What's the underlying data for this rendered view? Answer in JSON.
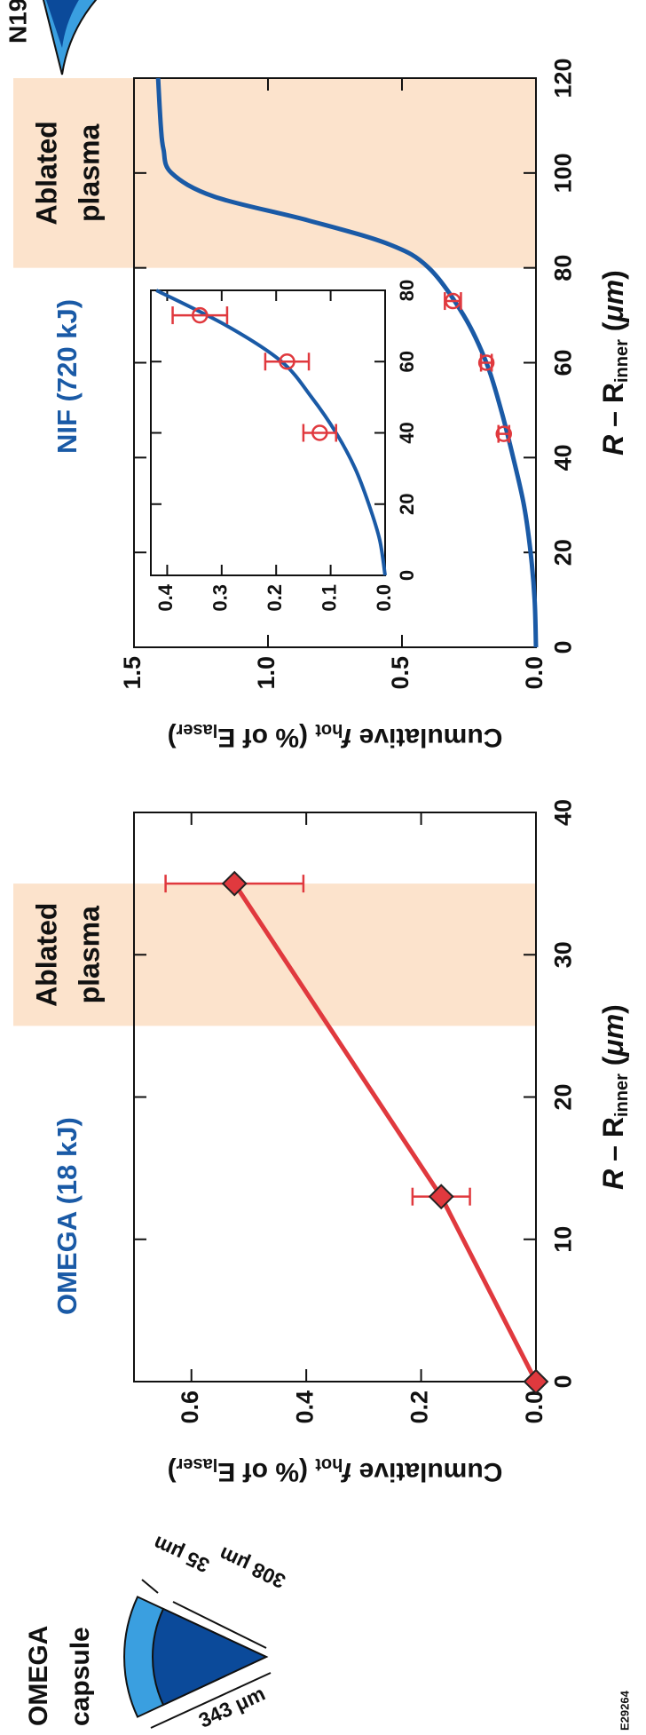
{
  "chart_data": [
    {
      "type": "line",
      "title": "OMEGA (18 kJ)",
      "title_color": "#1a5aa6",
      "xlabel": [
        "R",
        " – R",
        "inner",
        " (",
        "μm",
        ")"
      ],
      "ylabel": [
        "Cumulative ",
        "f",
        "hot",
        " (% of E",
        "laser",
        ")"
      ],
      "xlim": [
        0,
        40
      ],
      "xticks": [
        0,
        10,
        20,
        30,
        40
      ],
      "ylim": [
        0,
        0.7
      ],
      "yticks": [
        {
          "value": 0,
          "label": "0.0"
        },
        0.2,
        0.4,
        0.6
      ],
      "shade_range": [
        25,
        35
      ],
      "shade_color": "#fce3cc",
      "shade_label": [
        "Ablated",
        "plasma"
      ],
      "line": {
        "x": [
          0,
          13,
          35
        ],
        "values": [
          0,
          0.165,
          0.525
        ],
        "color": "#e0393e"
      },
      "points": {
        "x": [
          0,
          13,
          35
        ],
        "values": [
          0,
          0.165,
          0.525
        ],
        "errors": [
          null,
          0.05,
          0.12
        ],
        "color": "#e0393e",
        "marker": "diamond"
      }
    },
    {
      "type": "line",
      "title": "NIF (720 kJ)",
      "title_color": "#1a5aa6",
      "xlabel": [
        "R",
        " – R",
        "inner",
        " (",
        "μm",
        ")"
      ],
      "ylabel": [
        "Cumulative ",
        "f",
        "hot",
        " (% of E",
        "laser",
        ")"
      ],
      "xlim": [
        0,
        120
      ],
      "xticks": [
        0,
        20,
        40,
        60,
        80,
        100,
        120
      ],
      "ylim": [
        0,
        1.5
      ],
      "yticks": [
        {
          "value": 0,
          "label": "0.0"
        },
        0.5,
        {
          "value": 1,
          "label": "1.0"
        },
        1.5
      ],
      "shade_range": [
        80,
        120
      ],
      "shade_color": "#fce3cc",
      "shade_label": [
        "Ablated",
        "plasma"
      ],
      "line": {
        "x": [
          0,
          10,
          20,
          30,
          40,
          50,
          60,
          70,
          80,
          85,
          90,
          95,
          100,
          105,
          110,
          120
        ],
        "values": [
          0,
          0.005,
          0.02,
          0.045,
          0.085,
          0.13,
          0.185,
          0.27,
          0.4,
          0.55,
          0.85,
          1.2,
          1.36,
          1.39,
          1.4,
          1.41
        ],
        "color": "#1a5aa6"
      },
      "points": {
        "x": [
          45,
          60,
          73
        ],
        "values": [
          0.12,
          0.185,
          0.31
        ],
        "errors": [
          0.02,
          0.02,
          0.03
        ],
        "color": "#e0393e",
        "marker": "circle"
      }
    },
    {
      "type": "line",
      "xlim": [
        0,
        80
      ],
      "xticks": [
        0,
        20,
        40,
        60,
        80
      ],
      "ylim": [
        0,
        0.43
      ],
      "yticks": [
        {
          "value": 0,
          "label": "0.0"
        },
        0.1,
        0.2,
        0.3,
        0.4
      ],
      "line": {
        "x": [
          0,
          10,
          20,
          30,
          40,
          50,
          60,
          70,
          80
        ],
        "values": [
          0,
          0.01,
          0.03,
          0.055,
          0.09,
          0.135,
          0.19,
          0.29,
          0.42
        ],
        "color": "#1a5aa6"
      },
      "points": {
        "x": [
          40,
          60,
          73
        ],
        "values": [
          0.12,
          0.18,
          0.34
        ],
        "errors": [
          0.03,
          0.04,
          0.05
        ],
        "color": "#e0393e",
        "marker": "circle"
      }
    }
  ],
  "diagram": {
    "title": [
      "OMEGA",
      "capsule"
    ],
    "dims": [
      "35 μm",
      "308 μm",
      "343 μm"
    ],
    "nif_label": "N19",
    "figure_id": "E29264"
  }
}
